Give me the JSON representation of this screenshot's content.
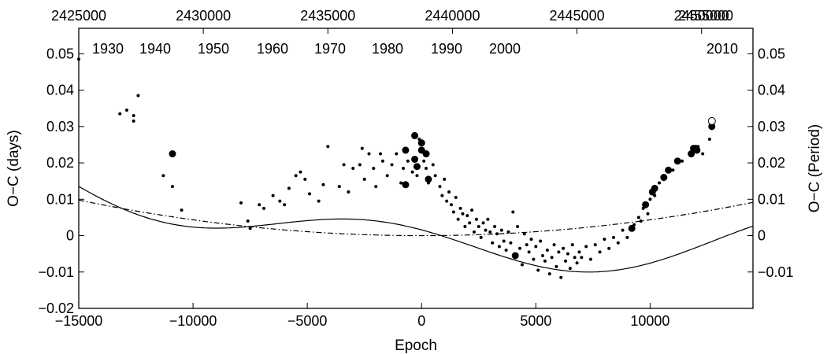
{
  "chart_data": {
    "type": "scatter",
    "title": "",
    "xlabel": "Epoch",
    "ylabel_left": "O−C (days)",
    "ylabel_right": "O−C (Period)",
    "xlim": [
      -15000,
      14500
    ],
    "ylim": [
      -0.02,
      0.057
    ],
    "x_ticks": [
      -15000,
      -10000,
      -5000,
      0,
      5000,
      10000
    ],
    "x_tick_labels": [
      "−15000",
      "−10000",
      "−5000",
      "0",
      "5000",
      "10000"
    ],
    "y_ticks": [
      -0.02,
      -0.01,
      0,
      0.01,
      0.02,
      0.03,
      0.04,
      0.05
    ],
    "y_tick_labels": [
      "−0.02",
      "−0.01",
      "0",
      "0.01",
      "0.02",
      "0.03",
      "0.04",
      "0.05"
    ],
    "right_ticks": [
      -0.01,
      0,
      0.01,
      0.02,
      0.03,
      0.04,
      0.05
    ],
    "right_tick_labels": [
      "−0.01",
      "0",
      "0.01",
      "0.02",
      "0.03",
      "0.04",
      "0.05"
    ],
    "top_jd_ticks": [
      {
        "epoch": -15000,
        "label": "2425000"
      },
      {
        "epoch": -9550,
        "label": "2430000"
      },
      {
        "epoch": -4100,
        "label": "2435000"
      },
      {
        "epoch": 1350,
        "label": "2440000"
      },
      {
        "epoch": 6800,
        "label": "2445000"
      },
      {
        "epoch": 12250,
        "label": "2450000"
      },
      {
        "epoch": 17700,
        "label": "2455000"
      }
    ],
    "inner_year_ticks": [
      {
        "epoch": -13020,
        "label": "1930"
      },
      {
        "epoch": -9030,
        "label": "1940"
      },
      {
        "epoch": -5050,
        "label": "1950"
      },
      {
        "epoch": -1060,
        "label": "1960"
      },
      {
        "epoch": 2920,
        "label": "1970"
      },
      {
        "epoch": 6900,
        "label": "1980"
      },
      {
        "epoch": 10900,
        "label": "1990"
      },
      {
        "epoch": 14870,
        "label": "2000"
      },
      {
        "epoch": 18870,
        "label": "2010"
      }
    ],
    "grid": false,
    "series": [
      {
        "style": "small-dot",
        "points": [
          [
            -15000,
            0.0485
          ],
          [
            -13200,
            0.0335
          ],
          [
            -12900,
            0.0345
          ],
          [
            -12600,
            0.033
          ],
          [
            -12600,
            0.0315
          ],
          [
            -12400,
            0.0385
          ],
          [
            -11300,
            0.0165
          ],
          [
            -10900,
            0.0135
          ],
          [
            -10500,
            0.007
          ],
          [
            -7900,
            0.009
          ],
          [
            -7600,
            0.004
          ],
          [
            -7500,
            0.002
          ],
          [
            -7100,
            0.0085
          ],
          [
            -6900,
            0.0075
          ],
          [
            -6500,
            0.011
          ],
          [
            -6200,
            0.0095
          ],
          [
            -6000,
            0.0085
          ],
          [
            -5800,
            0.013
          ],
          [
            -5500,
            0.0165
          ],
          [
            -5300,
            0.0175
          ],
          [
            -5100,
            0.0155
          ],
          [
            -4900,
            0.0115
          ],
          [
            -4500,
            0.0095
          ],
          [
            -4300,
            0.014
          ],
          [
            -4100,
            0.0245
          ],
          [
            -3600,
            0.0135
          ],
          [
            -3400,
            0.0195
          ],
          [
            -3200,
            0.012
          ],
          [
            -3000,
            0.0185
          ],
          [
            -2700,
            0.0195
          ],
          [
            -2600,
            0.024
          ],
          [
            -2500,
            0.0155
          ],
          [
            -2300,
            0.0225
          ],
          [
            -2100,
            0.0185
          ],
          [
            -2000,
            0.0135
          ],
          [
            -1800,
            0.0225
          ],
          [
            -1700,
            0.0205
          ],
          [
            -1500,
            0.0165
          ],
          [
            -1300,
            0.0195
          ],
          [
            -1100,
            0.0225
          ],
          [
            -900,
            0.0145
          ],
          [
            -800,
            0.0185
          ],
          [
            -600,
            0.0205
          ],
          [
            -400,
            0.0175
          ],
          [
            -200,
            0.0165
          ],
          [
            -100,
            0.0265
          ],
          [
            100,
            0.0205
          ],
          [
            200,
            0.0185
          ],
          [
            300,
            0.0145
          ],
          [
            500,
            0.0195
          ],
          [
            600,
            0.0165
          ],
          [
            800,
            0.0135
          ],
          [
            900,
            0.011
          ],
          [
            1000,
            0.0155
          ],
          [
            1100,
            0.0095
          ],
          [
            1200,
            0.012
          ],
          [
            1300,
            0.0085
          ],
          [
            1400,
            0.0065
          ],
          [
            1500,
            0.0105
          ],
          [
            1600,
            0.0045
          ],
          [
            1700,
            0.0075
          ],
          [
            1800,
            0.006
          ],
          [
            1900,
            0.0025
          ],
          [
            2000,
            0.0055
          ],
          [
            2100,
            0.0035
          ],
          [
            2200,
            0.007
          ],
          [
            2300,
            0.001
          ],
          [
            2400,
            0.0045
          ],
          [
            2500,
            0.0025
          ],
          [
            2600,
            -0.0005
          ],
          [
            2700,
            0.0035
          ],
          [
            2800,
            0.0015
          ],
          [
            2900,
            0.0045
          ],
          [
            3000,
            0.001
          ],
          [
            3100,
            -0.002
          ],
          [
            3200,
            0.0025
          ],
          [
            3300,
            0.0005
          ],
          [
            3400,
            -0.003
          ],
          [
            3500,
            0.0015
          ],
          [
            3600,
            -0.0015
          ],
          [
            3700,
            -0.004
          ],
          [
            3800,
            0.001
          ],
          [
            3900,
            -0.002
          ],
          [
            4000,
            0.0065
          ],
          [
            4100,
            -0.006
          ],
          [
            4200,
            0.0025
          ],
          [
            4300,
            -0.0035
          ],
          [
            4400,
            -0.008
          ],
          [
            4500,
            0.0005
          ],
          [
            4600,
            -0.0025
          ],
          [
            4700,
            -0.0045
          ],
          [
            4800,
            -0.001
          ],
          [
            4900,
            -0.0065
          ],
          [
            5000,
            -0.003
          ],
          [
            5100,
            -0.0095
          ],
          [
            5200,
            -0.0015
          ],
          [
            5300,
            -0.0055
          ],
          [
            5400,
            -0.007
          ],
          [
            5500,
            -0.004
          ],
          [
            5600,
            -0.0105
          ],
          [
            5700,
            -0.006
          ],
          [
            5800,
            -0.0025
          ],
          [
            5900,
            -0.0085
          ],
          [
            6000,
            -0.0045
          ],
          [
            6100,
            -0.0115
          ],
          [
            6200,
            -0.0035
          ],
          [
            6300,
            -0.007
          ],
          [
            6400,
            -0.005
          ],
          [
            6500,
            -0.009
          ],
          [
            6600,
            -0.0025
          ],
          [
            6700,
            -0.006
          ],
          [
            6800,
            -0.0075
          ],
          [
            6900,
            -0.0045
          ],
          [
            7000,
            -0.006
          ],
          [
            7200,
            -0.003
          ],
          [
            7400,
            -0.0065
          ],
          [
            7600,
            -0.0025
          ],
          [
            7800,
            -0.0045
          ],
          [
            8000,
            -0.001
          ],
          [
            8200,
            -0.0035
          ],
          [
            8400,
            -0.0005
          ],
          [
            8600,
            -0.002
          ],
          [
            8800,
            0.0015
          ],
          [
            9000,
            -0.0005
          ],
          [
            9200,
            0.0025
          ],
          [
            9300,
            0.003
          ],
          [
            9500,
            0.005
          ],
          [
            9600,
            0.004
          ],
          [
            9700,
            0.0075
          ],
          [
            9900,
            0.006
          ],
          [
            10000,
            0.01
          ],
          [
            10200,
            0.011
          ],
          [
            10400,
            0.0145
          ],
          [
            10600,
            0.0155
          ],
          [
            11000,
            0.018
          ],
          [
            11400,
            0.0205
          ],
          [
            11800,
            0.023
          ],
          [
            12100,
            0.0245
          ],
          [
            12300,
            0.0225
          ],
          [
            12600,
            0.0265
          ]
        ]
      },
      {
        "style": "large-dot",
        "points": [
          [
            -10900,
            0.0225
          ],
          [
            -700,
            0.0235
          ],
          [
            -700,
            0.014
          ],
          [
            -300,
            0.021
          ],
          [
            -200,
            0.019
          ],
          [
            0,
            0.0235
          ],
          [
            0,
            0.0255
          ],
          [
            200,
            0.0225
          ],
          [
            300,
            0.0155
          ],
          [
            -300,
            0.0275
          ],
          [
            4100,
            -0.0055
          ],
          [
            9200,
            0.002
          ],
          [
            9800,
            0.0085
          ],
          [
            10100,
            0.012
          ],
          [
            10200,
            0.013
          ],
          [
            10600,
            0.016
          ],
          [
            10800,
            0.018
          ],
          [
            11200,
            0.0205
          ],
          [
            11800,
            0.0225
          ],
          [
            11900,
            0.024
          ],
          [
            12000,
            0.024
          ],
          [
            12050,
            0.0235
          ],
          [
            12700,
            0.03
          ]
        ]
      },
      {
        "style": "open-circle",
        "points": [
          [
            12700,
            0.0315
          ]
        ]
      }
    ],
    "curves": [
      {
        "style": "solid",
        "model": "parabola + sinusoid",
        "a": 0.005,
        "b0": 6000,
        "c": -0.0045,
        "amp": 0.0056,
        "period": 19000,
        "phase_epoch": -2000
      },
      {
        "style": "dash-dot",
        "model": "parabola",
        "a": 0.00435,
        "b0": 0,
        "c": 0
      }
    ]
  }
}
